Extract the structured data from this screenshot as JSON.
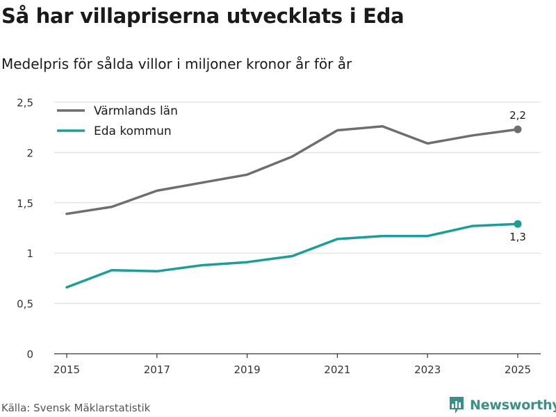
{
  "header": {
    "title": "Så har villapriserna utvecklats i Eda",
    "subtitle": "Medelpris för sålda villor i miljoner kronor år för år"
  },
  "footer": {
    "source": "Källa: Svensk Mäklarstatistik",
    "brand": "Newsworthy"
  },
  "colors": {
    "varmland": "#6e6e6e",
    "eda": "#18a096",
    "grid": "#d9d9d9",
    "brand": "#3a8f88"
  },
  "icons": {
    "brand_logo": "newsworthy-logo-icon"
  },
  "chart_data": {
    "type": "line",
    "title": "Så har villapriserna utvecklats i Eda",
    "subtitle": "Medelpris för sålda villor i miljoner kronor år för år",
    "xlabel": "",
    "ylabel": "",
    "x": [
      2015,
      2016,
      2017,
      2018,
      2019,
      2020,
      2021,
      2022,
      2023,
      2024,
      2025
    ],
    "xticks": [
      2015,
      2017,
      2019,
      2021,
      2023,
      2025
    ],
    "xtick_labels": [
      "2015",
      "2017",
      "2019",
      "2021",
      "2023",
      "2025"
    ],
    "ylim": [
      0,
      2.5
    ],
    "yticks": [
      0,
      0.5,
      1,
      1.5,
      2,
      2.5
    ],
    "ytick_labels": [
      "0",
      "0,5",
      "1",
      "1,5",
      "2",
      "2,5"
    ],
    "grid": true,
    "legend_position": "top-left",
    "series": [
      {
        "name": "Värmlands län",
        "key": "varmland",
        "values": [
          1.39,
          1.46,
          1.62,
          1.7,
          1.78,
          1.96,
          2.22,
          2.26,
          2.09,
          2.17,
          2.23
        ],
        "end_label": "2,2",
        "end_label_position": "above"
      },
      {
        "name": "Eda kommun",
        "key": "eda",
        "values": [
          0.66,
          0.83,
          0.82,
          0.88,
          0.91,
          0.97,
          1.14,
          1.17,
          1.17,
          1.27,
          1.29
        ],
        "end_label": "1,3",
        "end_label_position": "below"
      }
    ]
  }
}
